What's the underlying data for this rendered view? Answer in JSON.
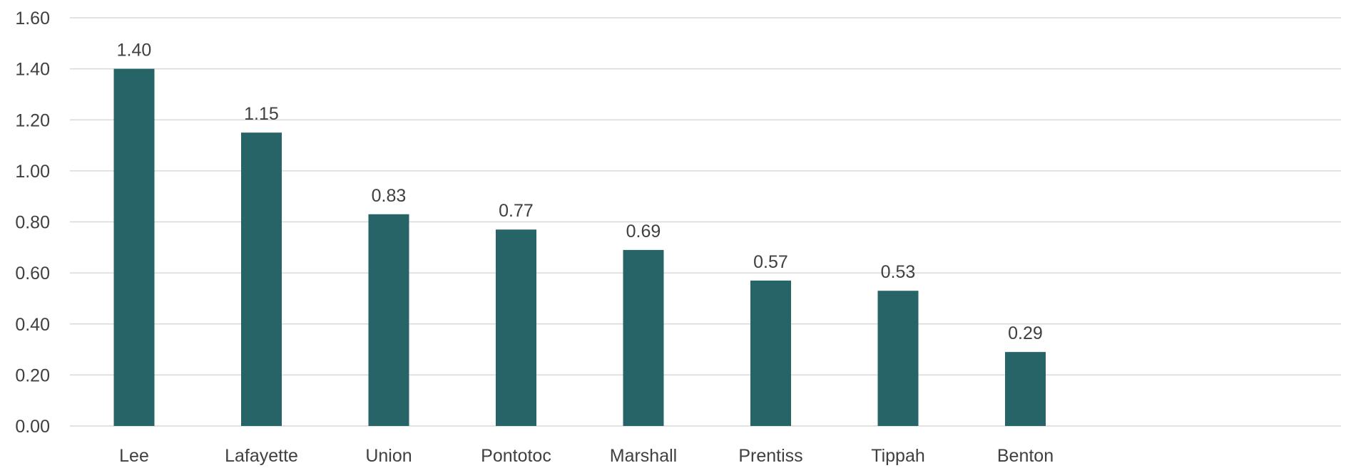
{
  "chart_data": {
    "type": "bar",
    "categories": [
      "Lee",
      "Lafayette",
      "Union",
      "Pontotoc",
      "Marshall",
      "Prentiss",
      "Tippah",
      "Benton"
    ],
    "values": [
      1.4,
      1.15,
      0.83,
      0.77,
      0.69,
      0.57,
      0.53,
      0.29
    ],
    "data_labels": [
      "1.40",
      "1.15",
      "0.83",
      "0.77",
      "0.69",
      "0.57",
      "0.53",
      "0.29"
    ],
    "title": "",
    "xlabel": "",
    "ylabel": "",
    "ylim": [
      0,
      1.6
    ],
    "yticks": [
      0,
      0.2,
      0.4,
      0.6,
      0.8,
      1.0,
      1.2,
      1.4,
      1.6
    ],
    "ytick_labels": [
      "0.00",
      "0.20",
      "0.40",
      "0.60",
      "0.80",
      "1.00",
      "1.20",
      "1.40",
      "1.60"
    ],
    "grid": true,
    "legend": "none",
    "bar_color": "#276468"
  }
}
